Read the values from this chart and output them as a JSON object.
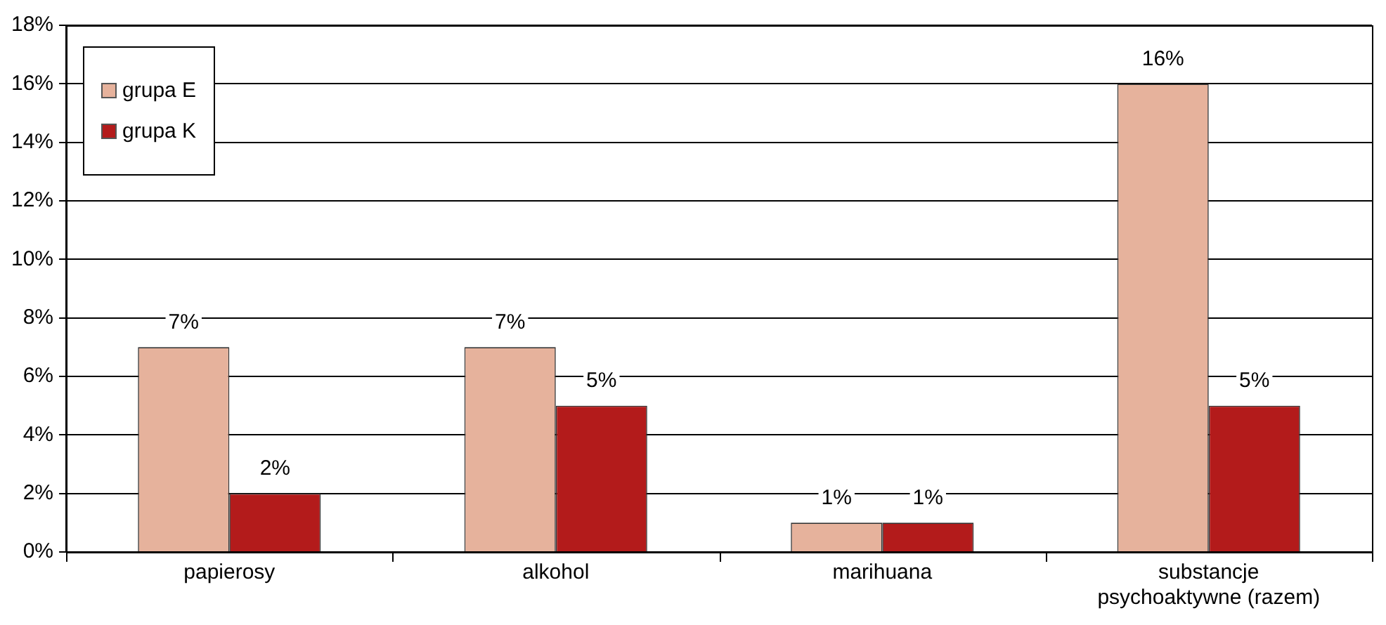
{
  "chart_data": {
    "type": "bar",
    "categories": [
      "papierosy",
      "alkohol",
      "marihuana",
      "substancje psychoaktywne (razem)"
    ],
    "series": [
      {
        "name": "grupa E",
        "color": "#e6b29c",
        "values": [
          7,
          7,
          1,
          16
        ],
        "value_labels": [
          "7%",
          "7%",
          "1%",
          "16%"
        ]
      },
      {
        "name": "grupa K",
        "color": "#b31b1b",
        "values": [
          2,
          5,
          1,
          5
        ],
        "value_labels": [
          "2%",
          "5%",
          "1%",
          "5%"
        ]
      }
    ],
    "ylim": [
      0,
      18
    ],
    "yticks": [
      {
        "value": 0,
        "label": "0%"
      },
      {
        "value": 2,
        "label": "2%"
      },
      {
        "value": 4,
        "label": "4%"
      },
      {
        "value": 6,
        "label": "6%"
      },
      {
        "value": 8,
        "label": "8%"
      },
      {
        "value": 10,
        "label": "10%"
      },
      {
        "value": 12,
        "label": "12%"
      },
      {
        "value": 14,
        "label": "14%"
      },
      {
        "value": 16,
        "label": "16%"
      },
      {
        "value": 18,
        "label": "18%"
      }
    ],
    "grid": "y",
    "legend": "top left"
  }
}
